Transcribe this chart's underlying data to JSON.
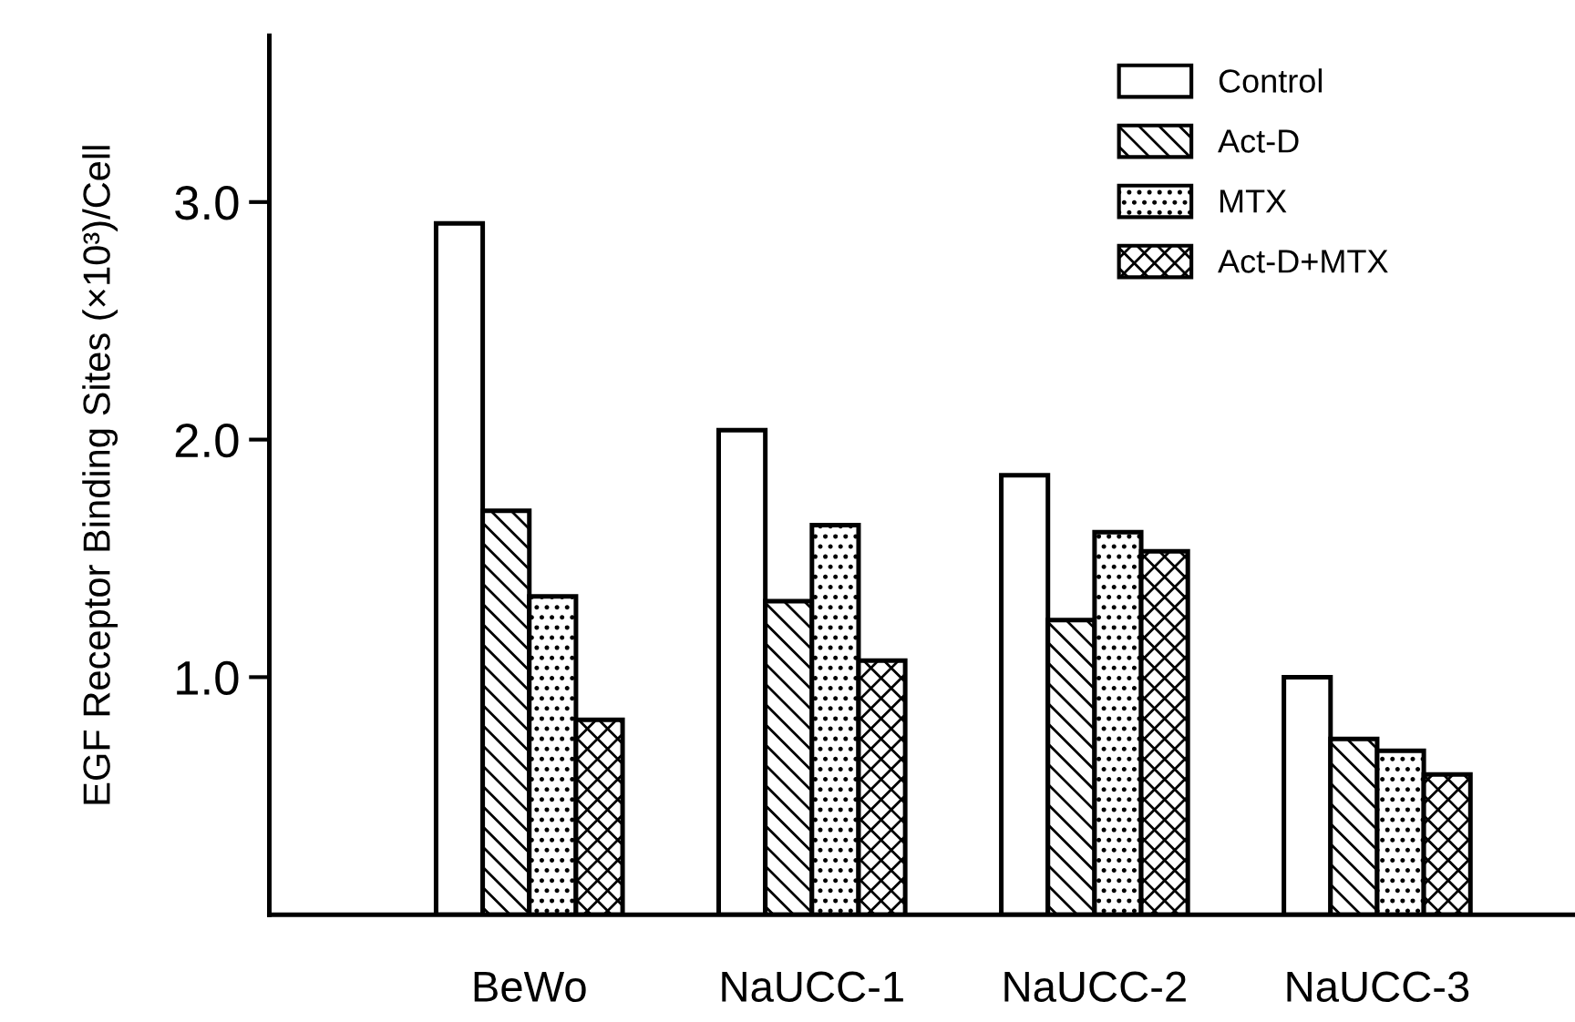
{
  "chart_data": {
    "type": "bar",
    "ylabel": "EGF Receptor Binding Sites (×10³)/Cell",
    "categories": [
      "BeWo",
      "NaUCC-1",
      "NaUCC-2",
      "NaUCC-3"
    ],
    "series": [
      {
        "name": "Control",
        "color": "#ffffff",
        "values": [
          2.91,
          2.04,
          1.85,
          1.0
        ]
      },
      {
        "name": "Act-D",
        "color": "#000000",
        "values": [
          1.7,
          1.32,
          1.24,
          0.74
        ]
      },
      {
        "name": "MTX",
        "color": "#000000",
        "values": [
          1.34,
          1.64,
          1.61,
          0.69
        ]
      },
      {
        "name": "Act-D+MTX",
        "color": "#000000",
        "values": [
          0.82,
          1.07,
          1.53,
          0.59
        ]
      }
    ],
    "ylim": [
      0,
      3.7
    ],
    "yticks": [
      {
        "value": 1,
        "label": "1.0"
      },
      {
        "value": 2,
        "label": "2.0"
      },
      {
        "value": 3,
        "label": "3.0"
      }
    ],
    "grid": false,
    "legend": "top right"
  }
}
